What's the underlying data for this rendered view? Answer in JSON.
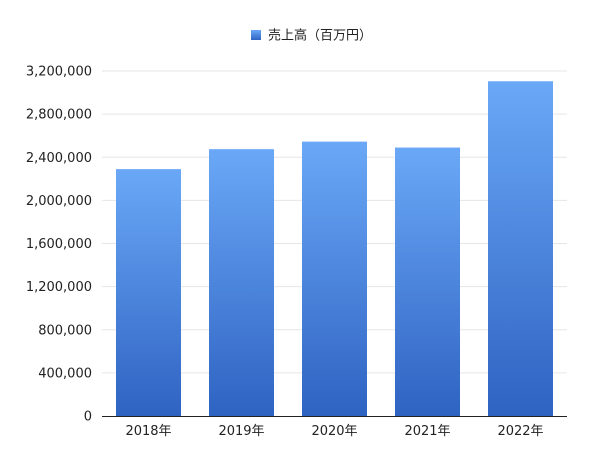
{
  "chart_data": {
    "type": "bar",
    "categories": [
      "2018年",
      "2019年",
      "2020年",
      "2021年",
      "2022年"
    ],
    "series": [
      {
        "name": "売上高（百万円）",
        "values": [
          2290000,
          2475000,
          2545000,
          2490000,
          3105000
        ]
      }
    ],
    "ylim": [
      0,
      3200000
    ],
    "yticks": [
      0,
      400000,
      800000,
      1200000,
      1600000,
      2000000,
      2400000,
      2800000,
      3200000
    ],
    "ytick_labels": [
      "0",
      "400,000",
      "800,000",
      "1,200,000",
      "1,600,000",
      "2,000,000",
      "2,400,000",
      "2,800,000",
      "3,200,000"
    ],
    "grid": true,
    "legend_position": "top-center",
    "colors": {
      "bar_top": "#6aa8f7",
      "bar_bottom": "#2f63c2",
      "grid": "#e6e6e6",
      "axis": "#222222"
    }
  }
}
